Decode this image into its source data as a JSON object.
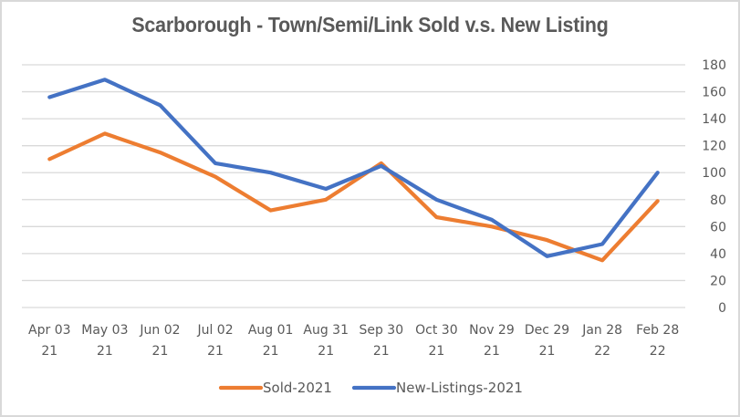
{
  "chart_data": {
    "type": "line",
    "title": "Scarborough - Town/Semi/Link Sold v.s. New Listing",
    "xlabel": "",
    "ylabel": "",
    "categories": [
      [
        "Apr 03",
        "21"
      ],
      [
        "May 03",
        "21"
      ],
      [
        "Jun 02",
        "21"
      ],
      [
        "Jul 02",
        "21"
      ],
      [
        "Aug 01",
        "21"
      ],
      [
        "Aug 31",
        "21"
      ],
      [
        "Sep 30",
        "21"
      ],
      [
        "Oct 30",
        "21"
      ],
      [
        "Nov 29",
        "21"
      ],
      [
        "Dec 29",
        "21"
      ],
      [
        "Jan 28",
        "22"
      ],
      [
        "Feb 28",
        "22"
      ]
    ],
    "series": [
      {
        "name": "Sold-2021",
        "color": "#ed7d31",
        "values": [
          110,
          129,
          115,
          97,
          72,
          80,
          107,
          67,
          60,
          50,
          35,
          79
        ]
      },
      {
        "name": "New-Listings-2021",
        "color": "#4472c4",
        "values": [
          156,
          169,
          150,
          107,
          100,
          88,
          105,
          80,
          65,
          38,
          47,
          100
        ]
      }
    ],
    "ylim": [
      0,
      180
    ],
    "yticks": [
      0,
      20,
      40,
      60,
      80,
      100,
      120,
      140,
      160,
      180
    ],
    "y_axis_side": "right",
    "grid": true,
    "gridline_color": "#d9d9d9",
    "legend_position": "bottom"
  }
}
